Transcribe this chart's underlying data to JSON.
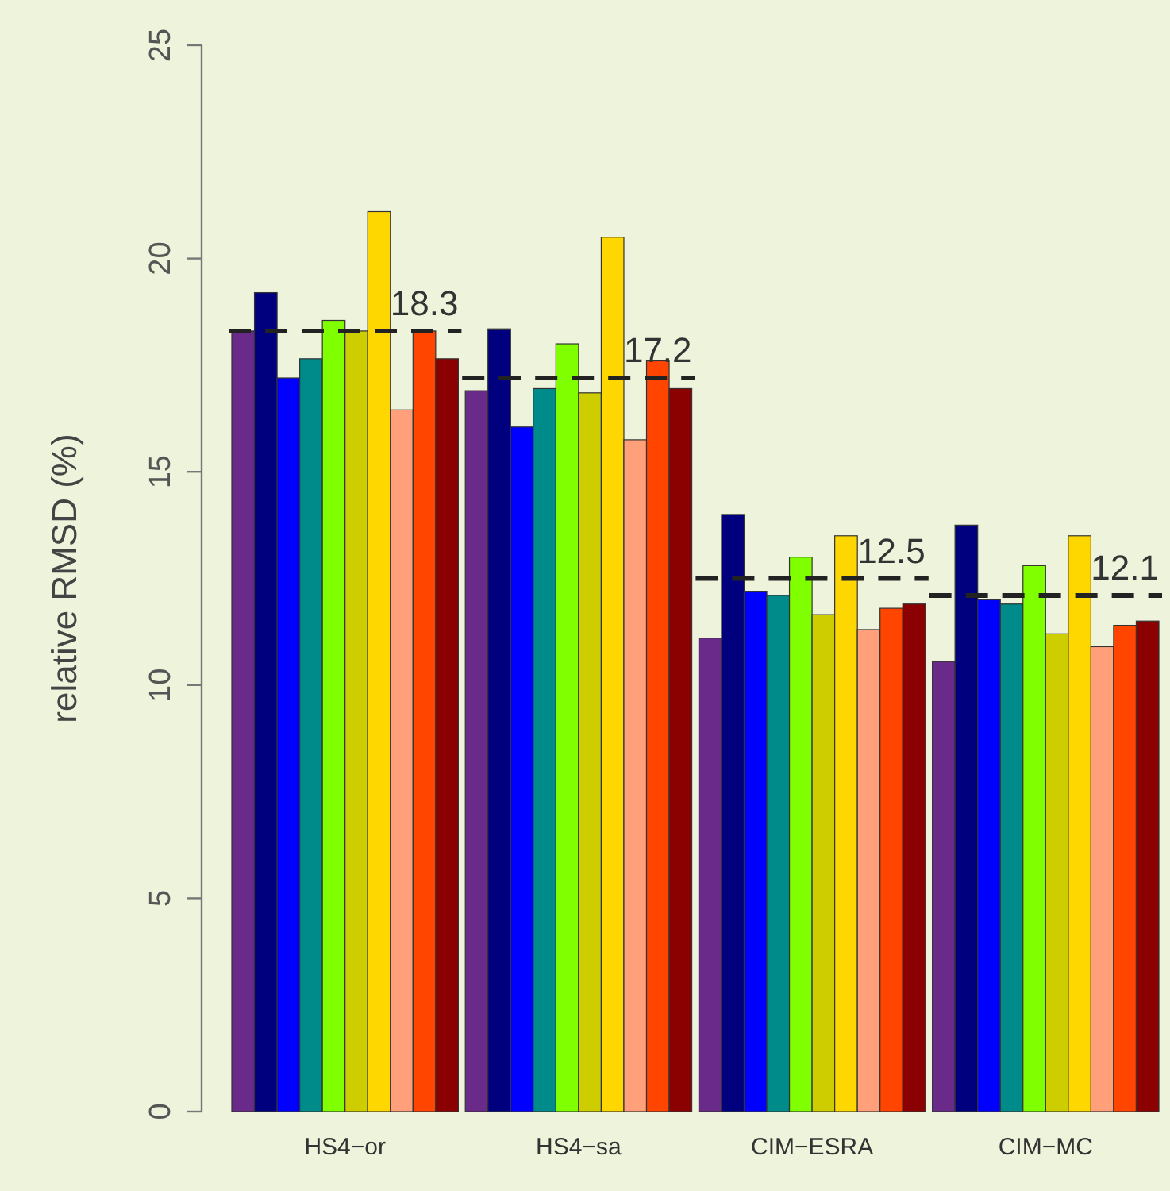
{
  "chart_data": {
    "type": "bar",
    "ylabel": "relative RMSD (%)",
    "categories": [
      "HS4−or",
      "HS4−sa",
      "CIM−ESRA",
      "CIM−MC"
    ],
    "ylim": [
      0,
      25
    ],
    "yticks": [
      0,
      5,
      10,
      15,
      20,
      25
    ],
    "grid": false,
    "series": [
      {
        "color": "#6a2a8a",
        "values": [
          18.3,
          16.9,
          11.1,
          10.55
        ]
      },
      {
        "color": "#00007f",
        "values": [
          19.2,
          18.35,
          14.0,
          13.75
        ]
      },
      {
        "color": "#0000ff",
        "values": [
          17.2,
          16.05,
          12.2,
          12.0
        ]
      },
      {
        "color": "#008b8b",
        "values": [
          17.65,
          16.95,
          12.1,
          11.9
        ]
      },
      {
        "color": "#7fff00",
        "values": [
          18.55,
          18.0,
          13.0,
          12.8
        ]
      },
      {
        "color": "#cdcd00",
        "values": [
          18.3,
          16.85,
          11.65,
          11.2
        ]
      },
      {
        "color": "#ffd700",
        "values": [
          21.1,
          20.5,
          13.5,
          13.5
        ]
      },
      {
        "color": "#ffa07a",
        "values": [
          16.45,
          15.75,
          11.3,
          10.9
        ]
      },
      {
        "color": "#ff4500",
        "values": [
          18.3,
          17.6,
          11.8,
          11.4
        ]
      },
      {
        "color": "#8b0000",
        "values": [
          17.65,
          16.95,
          11.9,
          11.5
        ]
      }
    ],
    "annotations": [
      {
        "text": "18.3",
        "x": "HS4−or",
        "y": 18.3
      },
      {
        "text": "17.2",
        "x": "HS4−sa",
        "y": 17.2
      },
      {
        "text": "12.5",
        "x": "CIM−ESRA",
        "y": 12.5
      },
      {
        "text": "12.1",
        "x": "CIM−MC",
        "y": 12.1
      }
    ]
  }
}
